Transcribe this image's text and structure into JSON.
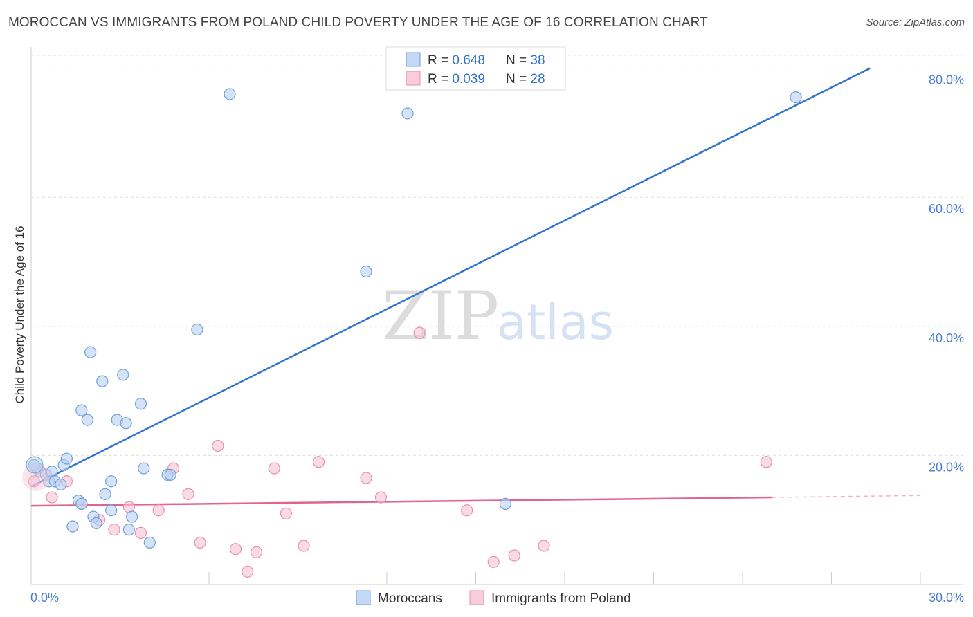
{
  "title": "MOROCCAN VS IMMIGRANTS FROM POLAND CHILD POVERTY UNDER THE AGE OF 16 CORRELATION CHART",
  "source": "Source: ZipAtlas.com",
  "watermark": {
    "zip": "ZIP",
    "atlas": "atlas"
  },
  "colors": {
    "moroccans_fill": "#b8d1f3",
    "moroccans_stroke": "#6f9fd8",
    "moroccans_line": "#2f72d0",
    "poland_fill": "#f7c3d3",
    "poland_stroke": "#e98fab",
    "poland_line": "#e2638c",
    "grid": "#dddddd",
    "tick_label": "#4a7fd0"
  },
  "legend": {
    "rows": [
      {
        "r_label": "R = ",
        "r_value": "0.648",
        "n_label": "N = ",
        "n_value": "38"
      },
      {
        "r_label": "R = ",
        "r_value": "0.039",
        "n_label": "N = ",
        "n_value": "28"
      }
    ]
  },
  "chart_data": {
    "type": "scatter",
    "ylabel": "Child Poverty Under the Age of 16",
    "xlim": [
      0,
      30
    ],
    "ylim": [
      0,
      82
    ],
    "x_tick_labels": [
      "0.0%",
      "30.0%"
    ],
    "y_ticks": [
      20,
      40,
      60,
      80
    ],
    "y_tick_labels": [
      "20.0%",
      "40.0%",
      "60.0%",
      "80.0%"
    ],
    "grid": true,
    "series": [
      {
        "name": "Moroccans",
        "points": [
          [
            0.2,
            18.0
          ],
          [
            0.3,
            17.5
          ],
          [
            0.5,
            17.0
          ],
          [
            0.6,
            16.0
          ],
          [
            0.7,
            17.5
          ],
          [
            0.8,
            16.0
          ],
          [
            1.0,
            15.5
          ],
          [
            1.1,
            18.5
          ],
          [
            1.2,
            19.5
          ],
          [
            1.4,
            9.0
          ],
          [
            1.6,
            13.0
          ],
          [
            1.7,
            12.5
          ],
          [
            1.7,
            27.0
          ],
          [
            1.9,
            25.5
          ],
          [
            2.0,
            36.0
          ],
          [
            2.1,
            10.5
          ],
          [
            2.2,
            9.5
          ],
          [
            2.4,
            31.5
          ],
          [
            2.5,
            14.0
          ],
          [
            2.7,
            11.5
          ],
          [
            2.7,
            16.0
          ],
          [
            2.9,
            25.5
          ],
          [
            3.1,
            32.5
          ],
          [
            3.2,
            25.0
          ],
          [
            3.3,
            8.5
          ],
          [
            3.4,
            10.5
          ],
          [
            3.7,
            28.0
          ],
          [
            3.8,
            18.0
          ],
          [
            4.0,
            6.5
          ],
          [
            4.6,
            17.0
          ],
          [
            4.7,
            17.0
          ],
          [
            5.6,
            39.5
          ],
          [
            6.7,
            76.0
          ],
          [
            11.3,
            48.5
          ],
          [
            12.7,
            73.0
          ],
          [
            16.0,
            12.5
          ],
          [
            25.8,
            75.5
          ],
          [
            0.1,
            18.5
          ]
        ],
        "trend": {
          "x": [
            0,
            28.3
          ],
          "y": [
            15.2,
            80.0
          ]
        }
      },
      {
        "name": "Immigrants from Poland",
        "points": [
          [
            0.1,
            16.0
          ],
          [
            0.7,
            13.5
          ],
          [
            1.2,
            16.0
          ],
          [
            1.7,
            12.5
          ],
          [
            2.3,
            10.0
          ],
          [
            2.8,
            8.5
          ],
          [
            3.3,
            12.0
          ],
          [
            3.7,
            8.0
          ],
          [
            4.3,
            11.5
          ],
          [
            4.8,
            18.0
          ],
          [
            5.3,
            14.0
          ],
          [
            5.7,
            6.5
          ],
          [
            6.3,
            21.5
          ],
          [
            6.9,
            5.5
          ],
          [
            7.3,
            2.0
          ],
          [
            7.6,
            5.0
          ],
          [
            8.2,
            18.0
          ],
          [
            8.6,
            11.0
          ],
          [
            9.2,
            6.0
          ],
          [
            9.7,
            19.0
          ],
          [
            11.3,
            16.5
          ],
          [
            11.8,
            13.5
          ],
          [
            13.1,
            39.0
          ],
          [
            14.7,
            11.5
          ],
          [
            15.6,
            3.5
          ],
          [
            16.3,
            4.5
          ],
          [
            17.3,
            6.0
          ],
          [
            24.8,
            19.0
          ]
        ],
        "trend": {
          "x": [
            0,
            25.0
          ],
          "y": [
            12.2,
            13.5
          ],
          "dashed_extension": {
            "x": [
              25.0,
              30.0
            ],
            "y": [
              13.5,
              13.8
            ]
          }
        }
      }
    ]
  }
}
